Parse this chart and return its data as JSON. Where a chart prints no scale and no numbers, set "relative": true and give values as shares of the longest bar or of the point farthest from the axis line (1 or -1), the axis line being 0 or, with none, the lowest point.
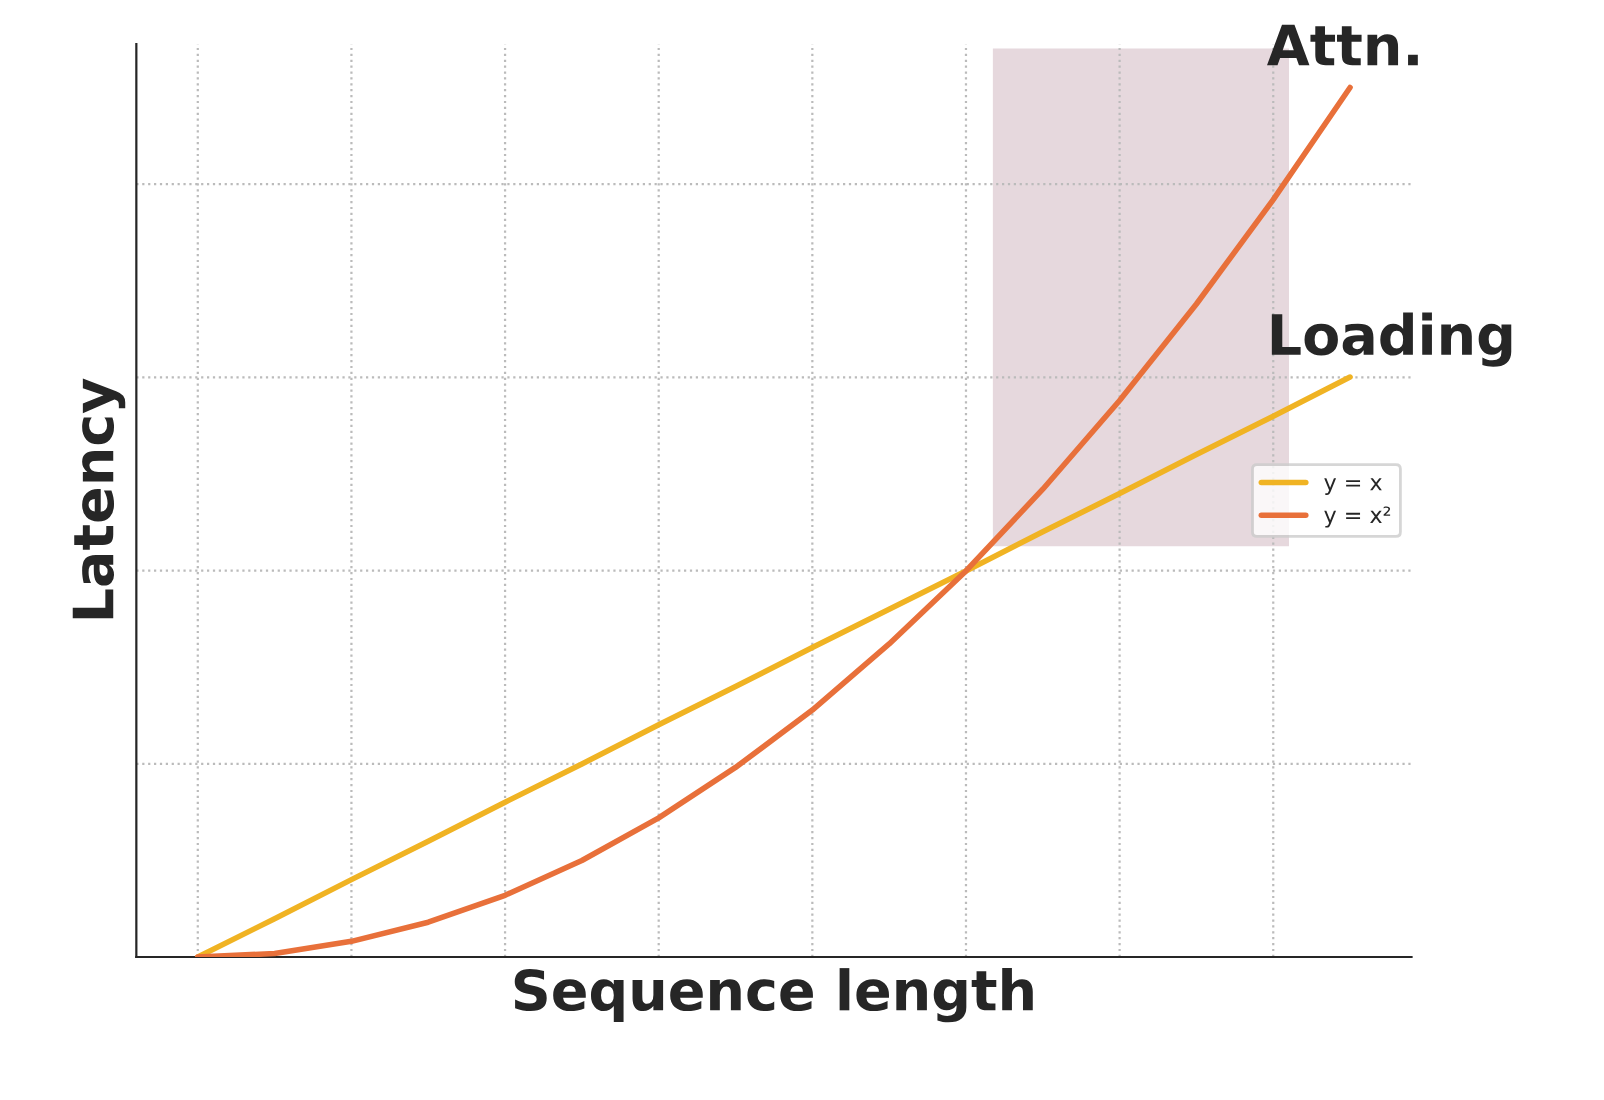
{
  "chart_data": {
    "type": "line",
    "relative": true,
    "xlabel": "Sequence length",
    "ylabel": "Latency",
    "categories": [
      null,
      null,
      null,
      null,
      null,
      null,
      null,
      null,
      null,
      null,
      null,
      null,
      null,
      null,
      null,
      null
    ],
    "series": [
      {
        "name": "y = x",
        "color": "#f0b323",
        "values": [
          0,
          0.044,
          0.089,
          0.133,
          0.178,
          0.222,
          0.267,
          0.311,
          0.356,
          0.4,
          0.444,
          0.489,
          0.533,
          0.578,
          0.622,
          0.667
        ]
      },
      {
        "name": "y = x²",
        "color": "#e8703a",
        "values": [
          0,
          0.004,
          0.018,
          0.04,
          0.071,
          0.111,
          0.16,
          0.218,
          0.284,
          0.36,
          0.444,
          0.538,
          0.64,
          0.751,
          0.871,
          1
        ]
      }
    ],
    "annotations": [
      "Attn.",
      "Loading"
    ],
    "grid": true,
    "legend": "right",
    "tick_labels": false,
    "marker": "none",
    "line_style": "solid"
  }
}
